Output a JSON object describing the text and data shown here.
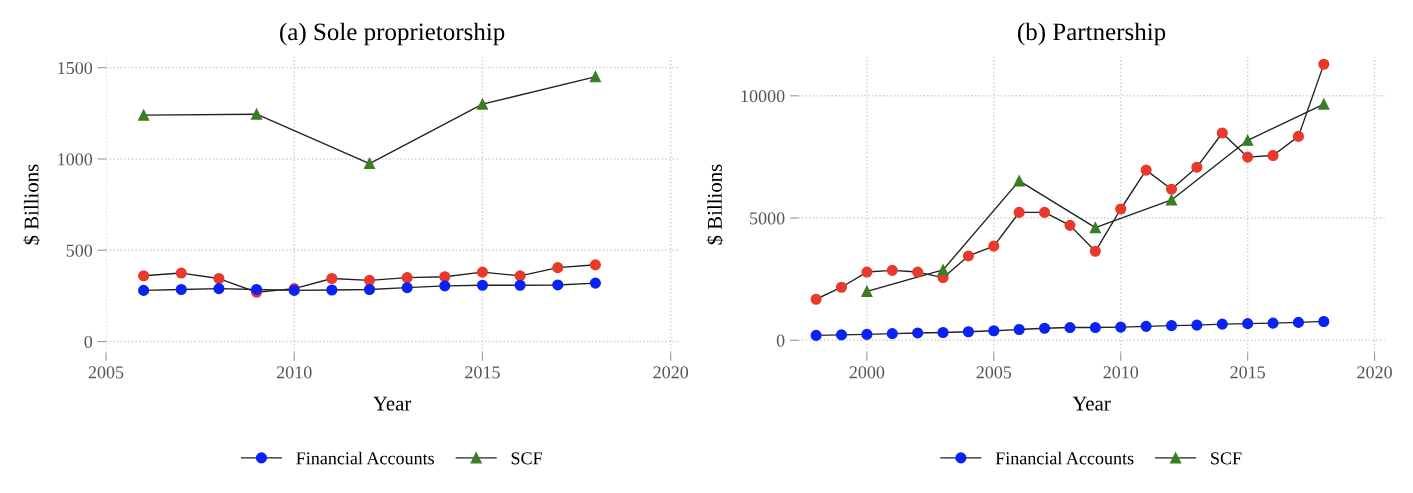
{
  "chart_data": [
    {
      "type": "line",
      "title": "(a) Sole proprietorship",
      "xlabel": "Year",
      "ylabel": "$ Billions",
      "xlim": [
        2005,
        2020.2
      ],
      "xticks": [
        2005,
        2010,
        2015,
        2020
      ],
      "ylim": [
        -60,
        1560
      ],
      "yticks": [
        0,
        500,
        1000,
        1500
      ],
      "grid": true,
      "legend": "bottom",
      "series": [
        {
          "color": "#e8392b",
          "marker": "circle",
          "x": [
            2006,
            2007,
            2008,
            2009,
            2010,
            2011,
            2012,
            2013,
            2014,
            2015,
            2016,
            2017,
            2018
          ],
          "values": [
            360,
            375,
            345,
            270,
            290,
            345,
            335,
            350,
            355,
            380,
            360,
            405,
            420
          ]
        },
        {
          "name": "Financial Accounts",
          "color": "#0a22f5",
          "marker": "circle",
          "x": [
            2006,
            2007,
            2008,
            2009,
            2010,
            2011,
            2012,
            2013,
            2014,
            2015,
            2016,
            2017,
            2018
          ],
          "values": [
            280,
            285,
            290,
            285,
            280,
            282,
            285,
            295,
            305,
            308,
            308,
            310,
            320
          ]
        },
        {
          "name": "SCF",
          "color": "#3a7d22",
          "marker": "triangle",
          "x": [
            2006,
            2009,
            2012,
            2015,
            2018
          ],
          "values": [
            1240,
            1245,
            975,
            1300,
            1450
          ]
        }
      ]
    },
    {
      "type": "line",
      "title": "(b) Partnership",
      "xlabel": "Year",
      "ylabel": "$ Billions",
      "xlim": [
        1997.3,
        2020.4
      ],
      "xticks": [
        2000,
        2005,
        2010,
        2015,
        2020
      ],
      "ylim": [
        -500,
        11600
      ],
      "yticks": [
        0,
        5000,
        10000
      ],
      "grid": true,
      "legend": "bottom",
      "series": [
        {
          "color": "#e8392b",
          "marker": "circle",
          "x": [
            1998,
            1999,
            2000,
            2001,
            2002,
            2003,
            2004,
            2005,
            2006,
            2007,
            2008,
            2009,
            2010,
            2011,
            2012,
            2013,
            2014,
            2015,
            2016,
            2017,
            2018
          ],
          "values": [
            1680,
            2170,
            2790,
            2860,
            2790,
            2560,
            3450,
            3850,
            5230,
            5230,
            4700,
            3640,
            5370,
            6960,
            6180,
            7080,
            8480,
            7490,
            7560,
            8340,
            11290
          ]
        },
        {
          "name": "Financial Accounts",
          "color": "#0a22f5",
          "marker": "circle",
          "x": [
            1998,
            1999,
            2000,
            2001,
            2002,
            2003,
            2004,
            2005,
            2006,
            2007,
            2008,
            2009,
            2010,
            2011,
            2012,
            2013,
            2014,
            2015,
            2016,
            2017,
            2018
          ],
          "values": [
            200,
            220,
            240,
            270,
            300,
            320,
            350,
            390,
            440,
            490,
            520,
            520,
            540,
            570,
            600,
            620,
            660,
            680,
            700,
            730,
            770
          ]
        },
        {
          "name": "SCF",
          "color": "#3a7d22",
          "marker": "triangle",
          "x": [
            2000,
            2003,
            2006,
            2009,
            2012,
            2015,
            2018
          ],
          "values": [
            2000,
            2880,
            6520,
            4610,
            5740,
            8180,
            9660
          ]
        }
      ]
    }
  ]
}
